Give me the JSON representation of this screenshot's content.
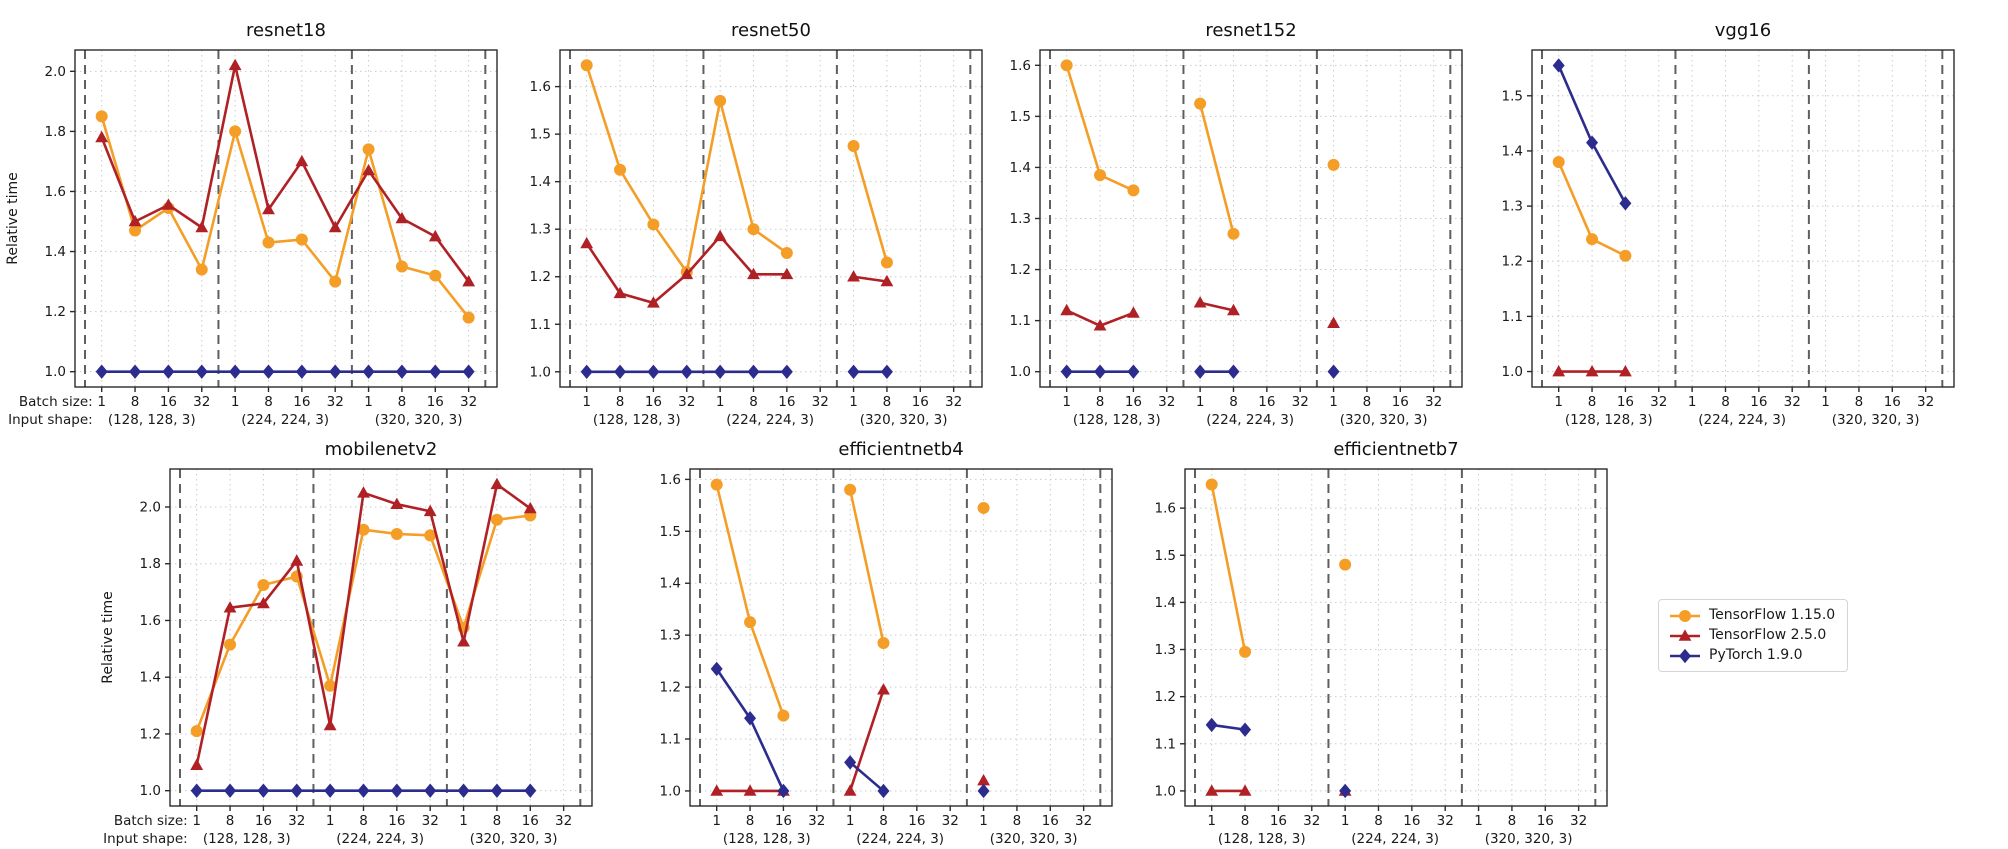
{
  "page": {
    "background": "#ffffff"
  },
  "legend": {
    "items": [
      {
        "label": "TensorFlow 1.15.0",
        "color": "#F59E27",
        "marker": "circle"
      },
      {
        "label": "TensorFlow 2.5.0",
        "color": "#B02126",
        "marker": "triangle"
      },
      {
        "label": "PyTorch 1.9.0",
        "color": "#2C2C8E",
        "marker": "diamond"
      }
    ]
  },
  "axis": {
    "ylabel": "Relative time",
    "batch_label_prefix": "Batch size:",
    "shape_label_prefix": "Input shape:",
    "batch_sizes": [
      "1",
      "8",
      "16",
      "32"
    ],
    "input_shapes": [
      "(128, 128, 3)",
      "(224, 224, 3)",
      "(320, 320, 3)"
    ],
    "group_separators": [
      -0.5,
      3.5,
      7.5,
      11.5
    ],
    "grid": true,
    "spine_color": "#2b2b2b",
    "grid_color": "#cbcbce",
    "separator_color": "#5f5f5f",
    "text_color": "#1a1a1a"
  },
  "chart_data": [
    {
      "type": "line",
      "title": "resnet18",
      "show_ylabel": true,
      "show_prefixes": true,
      "ylim": [
        0.949,
        2.071
      ],
      "yticks": [
        1.0,
        1.2,
        1.4,
        1.6,
        1.8,
        2.0
      ],
      "series": [
        {
          "name": "TensorFlow 1.15.0",
          "values": [
            1.85,
            1.47,
            1.545,
            1.34,
            1.8,
            1.43,
            1.44,
            1.3,
            1.74,
            1.35,
            1.32,
            1.18
          ]
        },
        {
          "name": "TensorFlow 2.5.0",
          "values": [
            1.78,
            1.5,
            1.555,
            1.48,
            2.02,
            1.54,
            1.7,
            1.48,
            1.67,
            1.51,
            1.45,
            1.3
          ]
        },
        {
          "name": "PyTorch 1.9.0",
          "values": [
            1.0,
            1.0,
            1.0,
            1.0,
            1.0,
            1.0,
            1.0,
            1.0,
            1.0,
            1.0,
            1.0,
            1.0
          ]
        }
      ]
    },
    {
      "type": "line",
      "title": "resnet50",
      "show_ylabel": false,
      "show_prefixes": false,
      "ylim": [
        0.968,
        1.677
      ],
      "yticks": [
        1.0,
        1.1,
        1.2,
        1.3,
        1.4,
        1.5,
        1.6
      ],
      "series": [
        {
          "name": "TensorFlow 1.15.0",
          "values": [
            1.645,
            1.425,
            1.31,
            1.21,
            1.57,
            1.3,
            1.25,
            null,
            1.475,
            1.23,
            null,
            null
          ]
        },
        {
          "name": "TensorFlow 2.5.0",
          "values": [
            1.27,
            1.165,
            1.145,
            1.205,
            1.285,
            1.205,
            1.205,
            null,
            1.2,
            1.19,
            null,
            null
          ]
        },
        {
          "name": "PyTorch 1.9.0",
          "values": [
            1.0,
            1.0,
            1.0,
            1.0,
            1.0,
            1.0,
            1.0,
            null,
            1.0,
            1.0,
            null,
            null
          ]
        }
      ]
    },
    {
      "type": "line",
      "title": "resnet152",
      "show_ylabel": false,
      "show_prefixes": false,
      "ylim": [
        0.97,
        1.63
      ],
      "yticks": [
        1.0,
        1.1,
        1.2,
        1.3,
        1.4,
        1.5,
        1.6
      ],
      "series": [
        {
          "name": "TensorFlow 1.15.0",
          "values": [
            1.6,
            1.385,
            1.355,
            null,
            1.525,
            1.27,
            null,
            null,
            1.405,
            null,
            null,
            null
          ]
        },
        {
          "name": "TensorFlow 2.5.0",
          "values": [
            1.12,
            1.09,
            1.115,
            null,
            1.135,
            1.12,
            null,
            null,
            1.095,
            null,
            null,
            null
          ]
        },
        {
          "name": "PyTorch 1.9.0",
          "values": [
            1.0,
            1.0,
            1.0,
            null,
            1.0,
            1.0,
            null,
            null,
            1.0,
            null,
            null,
            null
          ]
        }
      ]
    },
    {
      "type": "line",
      "title": "vgg16",
      "show_ylabel": false,
      "show_prefixes": false,
      "ylim": [
        0.972,
        1.583
      ],
      "yticks": [
        1.0,
        1.1,
        1.2,
        1.3,
        1.4,
        1.5
      ],
      "series": [
        {
          "name": "TensorFlow 1.15.0",
          "values": [
            1.38,
            1.24,
            1.21,
            null,
            null,
            null,
            null,
            null,
            null,
            null,
            null,
            null
          ]
        },
        {
          "name": "TensorFlow 2.5.0",
          "values": [
            1.0,
            1.0,
            1.0,
            null,
            null,
            null,
            null,
            null,
            null,
            null,
            null,
            null
          ]
        },
        {
          "name": "PyTorch 1.9.0",
          "values": [
            1.555,
            1.415,
            1.305,
            null,
            null,
            null,
            null,
            null,
            null,
            null,
            null,
            null
          ]
        }
      ]
    },
    {
      "type": "line",
      "title": "mobilenetv2",
      "show_ylabel": true,
      "show_prefixes": true,
      "ylim": [
        0.946,
        2.134
      ],
      "yticks": [
        1.0,
        1.2,
        1.4,
        1.6,
        1.8,
        2.0
      ],
      "series": [
        {
          "name": "TensorFlow 1.15.0",
          "values": [
            1.21,
            1.515,
            1.725,
            1.755,
            1.37,
            1.92,
            1.905,
            1.9,
            1.575,
            1.955,
            1.97,
            null
          ]
        },
        {
          "name": "TensorFlow 2.5.0",
          "values": [
            1.09,
            1.645,
            1.66,
            1.81,
            1.23,
            2.05,
            2.01,
            1.985,
            1.525,
            2.08,
            1.995,
            null
          ]
        },
        {
          "name": "PyTorch 1.9.0",
          "values": [
            1.0,
            1.0,
            1.0,
            1.0,
            1.0,
            1.0,
            1.0,
            1.0,
            1.0,
            1.0,
            1.0,
            null
          ]
        }
      ]
    },
    {
      "type": "line",
      "title": "efficientnetb4",
      "show_ylabel": false,
      "show_prefixes": false,
      "ylim": [
        0.971,
        1.62
      ],
      "yticks": [
        1.0,
        1.1,
        1.2,
        1.3,
        1.4,
        1.5,
        1.6
      ],
      "series": [
        {
          "name": "TensorFlow 1.15.0",
          "values": [
            1.59,
            1.325,
            1.145,
            null,
            1.58,
            1.285,
            null,
            null,
            1.545,
            null,
            null,
            null
          ]
        },
        {
          "name": "TensorFlow 2.5.0",
          "values": [
            1.0,
            1.0,
            1.0,
            null,
            1.0,
            1.195,
            null,
            null,
            1.02,
            null,
            null,
            null
          ]
        },
        {
          "name": "PyTorch 1.9.0",
          "values": [
            1.235,
            1.14,
            1.0,
            null,
            1.055,
            1.0,
            null,
            null,
            1.0,
            null,
            null,
            null
          ]
        }
      ]
    },
    {
      "type": "line",
      "title": "efficientnetb7",
      "show_ylabel": false,
      "show_prefixes": false,
      "ylim": [
        0.968,
        1.683
      ],
      "yticks": [
        1.0,
        1.1,
        1.2,
        1.3,
        1.4,
        1.5,
        1.6
      ],
      "series": [
        {
          "name": "TensorFlow 1.15.0",
          "values": [
            1.65,
            1.295,
            null,
            null,
            1.48,
            null,
            null,
            null,
            null,
            null,
            null,
            null
          ]
        },
        {
          "name": "TensorFlow 2.5.0",
          "values": [
            1.0,
            1.0,
            null,
            null,
            1.0,
            null,
            null,
            null,
            null,
            null,
            null,
            null
          ]
        },
        {
          "name": "PyTorch 1.9.0",
          "values": [
            1.14,
            1.13,
            null,
            null,
            1.0,
            null,
            null,
            null,
            null,
            null,
            null,
            null
          ]
        }
      ]
    }
  ]
}
